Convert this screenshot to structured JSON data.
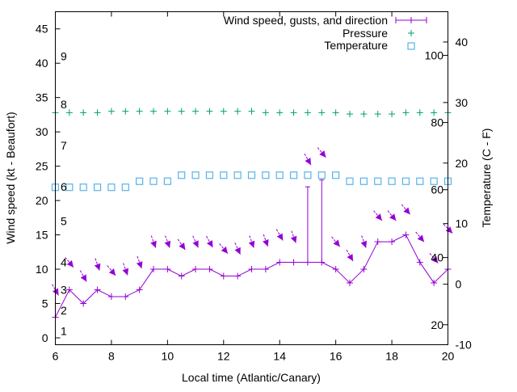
{
  "chart_data": {
    "type": "line",
    "xlabel": "Local time (Atlantic/Canary)",
    "ylabel": "Wind speed (kt - Beaufort)",
    "y2label": "Temperature (C - F)",
    "xlim": [
      6,
      20
    ],
    "ylim": [
      -1,
      47.5
    ],
    "y2lim": [
      -10,
      45
    ],
    "xticks": [
      6,
      8,
      10,
      12,
      14,
      16,
      18,
      20
    ],
    "yticks": [
      0,
      5,
      10,
      15,
      20,
      25,
      30,
      35,
      40,
      45
    ],
    "y2ticks": [
      -10,
      0,
      10,
      20,
      30,
      40
    ],
    "beaufort_labels": [
      {
        "label": "1",
        "kt": 1
      },
      {
        "label": "2",
        "kt": 4
      },
      {
        "label": "3",
        "kt": 7
      },
      {
        "label": "4",
        "kt": 11
      },
      {
        "label": "5",
        "kt": 17
      },
      {
        "label": "6",
        "kt": 22
      },
      {
        "label": "7",
        "kt": 28
      },
      {
        "label": "8",
        "kt": 34
      },
      {
        "label": "9",
        "kt": 41
      }
    ],
    "fahrenheit_labels": [
      {
        "label": "20",
        "c": -6.7
      },
      {
        "label": "40",
        "c": 4.4
      },
      {
        "label": "60",
        "c": 15.6
      },
      {
        "label": "80",
        "c": 26.7
      },
      {
        "label": "100",
        "c": 37.8
      }
    ],
    "x": [
      6,
      6.5,
      7,
      7.5,
      8,
      8.5,
      9,
      9.5,
      10,
      10.5,
      11,
      11.5,
      12,
      12.5,
      13,
      13.5,
      14,
      14.5,
      15,
      15.5,
      16,
      16.5,
      17,
      17.5,
      18,
      18.5,
      19,
      19.5,
      20
    ],
    "series": [
      {
        "name": "Wind speed, gusts, and direction",
        "color": "#9400d3",
        "values": [
          3,
          7,
          5,
          7,
          6,
          6,
          7,
          10,
          10,
          9,
          10,
          10,
          9,
          9,
          10,
          10,
          11,
          11,
          11,
          11,
          10,
          8,
          10,
          14,
          14,
          15,
          11,
          8,
          10
        ],
        "gust_bars": [
          {
            "x": 15,
            "gust": 22
          },
          {
            "x": 15.5,
            "gust": 23
          }
        ],
        "arrow_level": [
          7,
          11,
          9,
          10.7,
          9.8,
          10,
          11,
          14,
          14,
          13.6,
          14,
          14,
          13,
          13,
          14,
          14.2,
          15,
          14.7,
          26,
          27,
          14,
          12,
          14,
          17.8,
          17.8,
          18.7,
          14.7,
          11.6,
          15.9
        ],
        "direction_deg": [
          330,
          320,
          330,
          340,
          320,
          340,
          340,
          340,
          340,
          325,
          335,
          330,
          320,
          335,
          340,
          340,
          330,
          340,
          330,
          320,
          320,
          330,
          340,
          320,
          320,
          320,
          320,
          320,
          315
        ]
      },
      {
        "name": "Pressure",
        "color": "#009e73",
        "values": [
          32.8,
          32.8,
          32.8,
          32.8,
          33,
          33,
          33,
          33,
          33,
          33,
          33,
          33,
          33,
          33,
          33,
          32.8,
          32.8,
          32.8,
          32.8,
          32.8,
          32.8,
          32.6,
          32.6,
          32.6,
          32.6,
          32.8,
          32.8,
          32.8,
          32.8
        ]
      },
      {
        "name": "Temperature",
        "color": "#56b4e9",
        "axis": "y2",
        "values": [
          16,
          16,
          16,
          16,
          16,
          16,
          17,
          17,
          17,
          18,
          18,
          18,
          18,
          18,
          18,
          18,
          18,
          18,
          18,
          18,
          18,
          17,
          17,
          17,
          17,
          17,
          17,
          17,
          17
        ]
      }
    ],
    "legend": "top-right",
    "grid": false
  }
}
